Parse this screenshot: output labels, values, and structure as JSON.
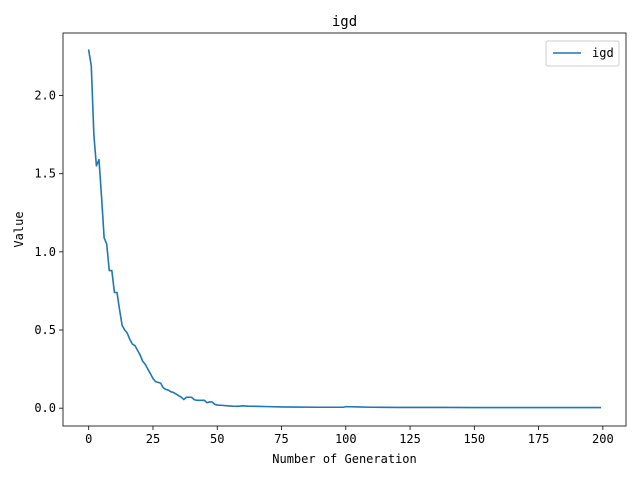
{
  "chart_data": {
    "type": "line",
    "title": "igd",
    "xlabel": "Number of Generation",
    "ylabel": "Value",
    "xlim": [
      -10,
      209
    ],
    "ylim": [
      -0.114,
      2.4
    ],
    "xticks": [
      0,
      25,
      50,
      75,
      100,
      125,
      150,
      175,
      200
    ],
    "yticks": [
      0.0,
      0.5,
      1.0,
      1.5,
      2.0
    ],
    "xtick_labels": [
      "0",
      "25",
      "50",
      "75",
      "100",
      "125",
      "150",
      "175",
      "200"
    ],
    "ytick_labels": [
      "0.0",
      "0.5",
      "1.0",
      "1.5",
      "2.0"
    ],
    "legend_position": "upper right",
    "grid": false,
    "series": [
      {
        "name": "igd",
        "color": "#1f77b4",
        "x": [
          0,
          1,
          2,
          3,
          4,
          5,
          6,
          7,
          8,
          9,
          10,
          11,
          12,
          13,
          14,
          15,
          16,
          17,
          18,
          19,
          20,
          21,
          22,
          23,
          24,
          25,
          26,
          27,
          28,
          29,
          30,
          31,
          32,
          33,
          34,
          35,
          36,
          37,
          38,
          39,
          40,
          41,
          42,
          43,
          44,
          45,
          46,
          47,
          48,
          49,
          50,
          52,
          54,
          56,
          58,
          60,
          62,
          65,
          70,
          75,
          80,
          90,
          99,
          100,
          105,
          110,
          120,
          130,
          140,
          150,
          160,
          170,
          180,
          190,
          199
        ],
        "y": [
          2.29,
          2.19,
          1.75,
          1.55,
          1.59,
          1.35,
          1.09,
          1.05,
          0.88,
          0.88,
          0.74,
          0.74,
          0.63,
          0.53,
          0.5,
          0.48,
          0.44,
          0.41,
          0.4,
          0.37,
          0.34,
          0.3,
          0.28,
          0.25,
          0.22,
          0.19,
          0.17,
          0.165,
          0.16,
          0.13,
          0.12,
          0.115,
          0.105,
          0.1,
          0.09,
          0.08,
          0.07,
          0.055,
          0.07,
          0.07,
          0.07,
          0.055,
          0.05,
          0.05,
          0.05,
          0.05,
          0.035,
          0.04,
          0.04,
          0.025,
          0.02,
          0.018,
          0.015,
          0.013,
          0.012,
          0.015,
          0.013,
          0.012,
          0.01,
          0.008,
          0.007,
          0.006,
          0.006,
          0.01,
          0.008,
          0.006,
          0.005,
          0.005,
          0.005,
          0.004,
          0.004,
          0.004,
          0.004,
          0.004,
          0.004
        ]
      }
    ]
  }
}
